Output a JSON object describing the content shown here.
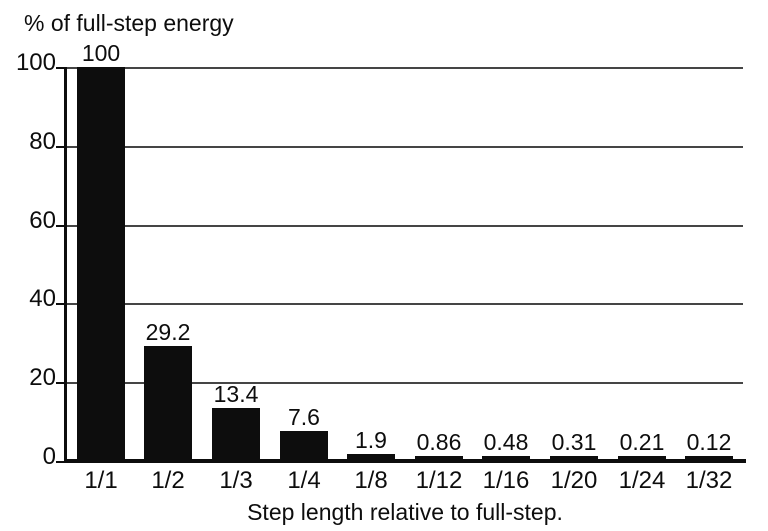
{
  "chart_data": {
    "type": "bar",
    "title": "% of full-step energy",
    "xlabel": "Step length relative to full-step.",
    "ylabel": "",
    "categories": [
      "1/1",
      "1/2",
      "1/3",
      "1/4",
      "1/8",
      "1/12",
      "1/16",
      "1/20",
      "1/24",
      "1/32"
    ],
    "values": [
      100,
      29.2,
      13.4,
      7.6,
      1.9,
      0.86,
      0.48,
      0.31,
      0.21,
      0.12
    ],
    "value_labels": [
      "100",
      "29.2",
      "13.4",
      "7.6",
      "1.9",
      "0.86",
      "0.48",
      "0.31",
      "0.21",
      "0.12"
    ],
    "yticks": [
      0,
      20,
      40,
      60,
      80,
      100
    ],
    "ylim": [
      0,
      100
    ],
    "grid": "horizontal",
    "legend": "none",
    "bar_color": "#0d0d0d",
    "gridline_color": "#454545",
    "background_color": "#ffffff"
  }
}
